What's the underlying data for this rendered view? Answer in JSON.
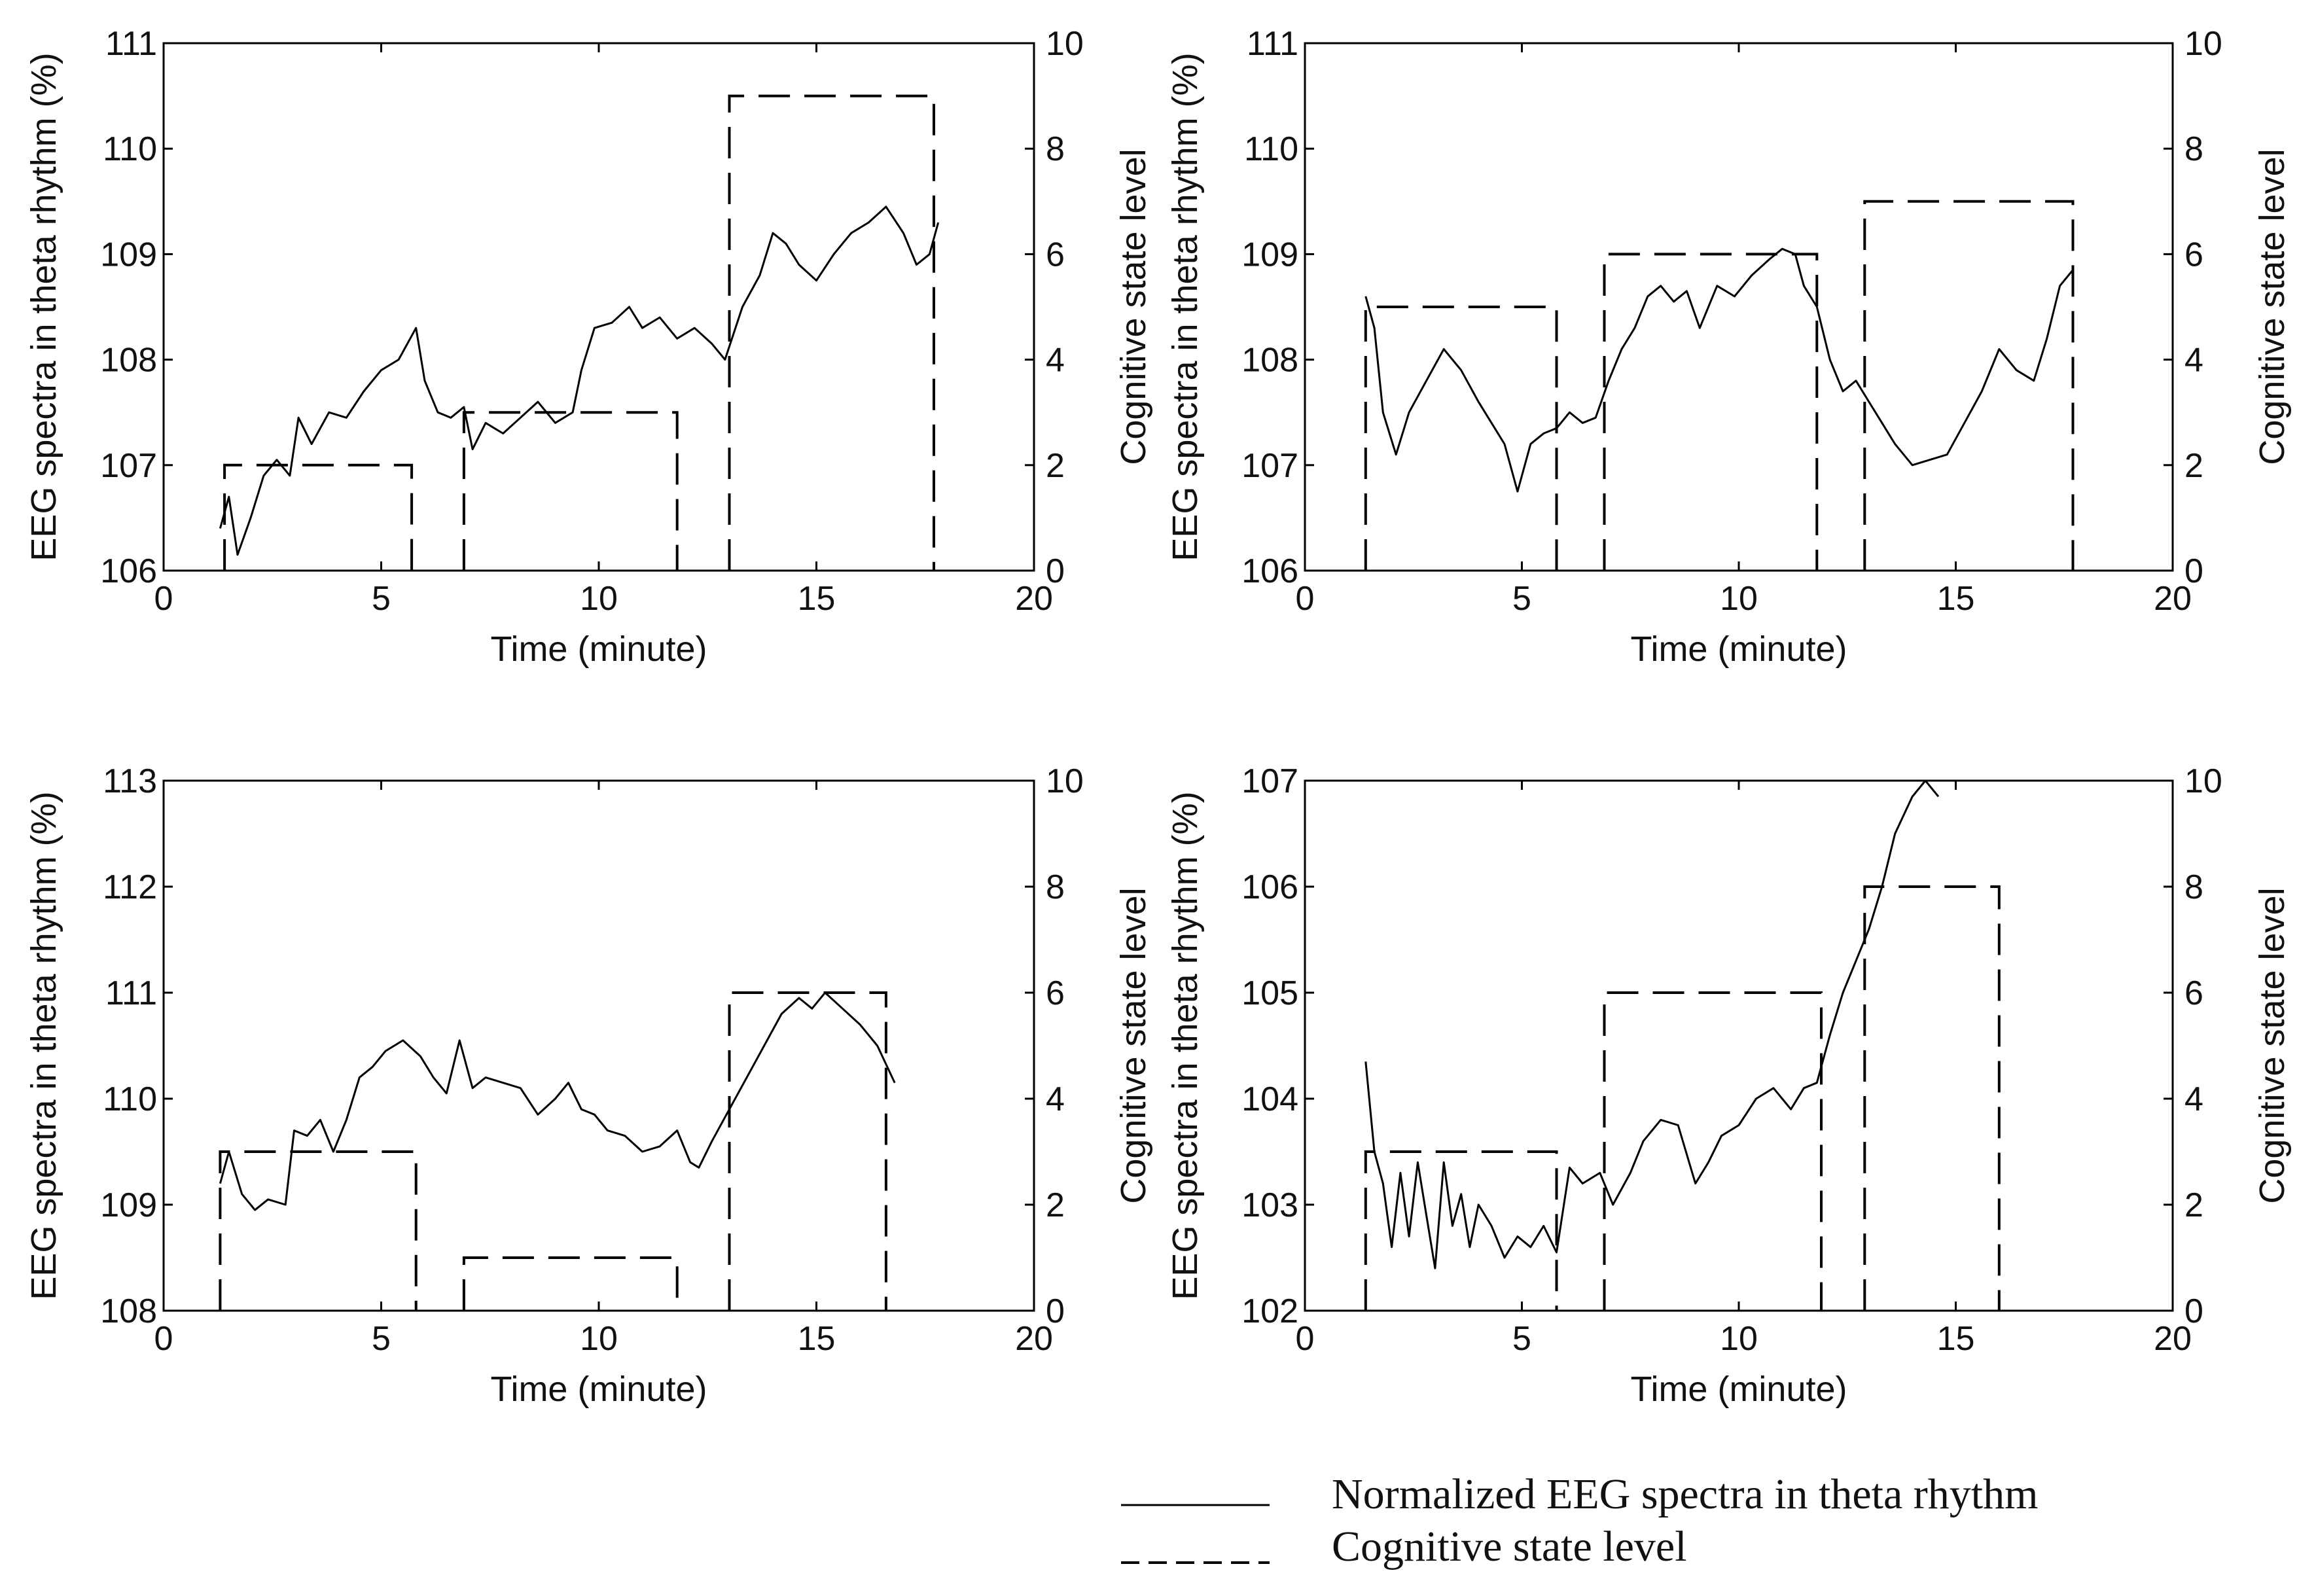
{
  "legend": {
    "solid_label": "Normalized EEG spectra in theta rhythm",
    "dashed_label": "Cognitive state level"
  },
  "chart_data": [
    {
      "type": "line",
      "panel": "top-left",
      "title": "",
      "xlabel": "Time (minute)",
      "ylabel": "EEG spectra in theta rhythm (%)",
      "y2label": "Cognitive state level",
      "xlim": [
        0,
        20
      ],
      "ylim": [
        106,
        111
      ],
      "y2lim": [
        0,
        10
      ],
      "xticks": [
        "0",
        "5",
        "10",
        "15",
        "20"
      ],
      "yticks": [
        "106",
        "107",
        "108",
        "109",
        "110",
        "111"
      ],
      "y2ticks": [
        "0",
        "2",
        "4",
        "6",
        "8",
        "10"
      ],
      "grid": false,
      "series": [
        {
          "name": "Normalized EEG spectra in theta rhythm",
          "axis": "left",
          "style": "solid",
          "x": [
            1.3,
            1.5,
            1.7,
            2.0,
            2.3,
            2.6,
            2.9,
            3.1,
            3.4,
            3.8,
            4.2,
            4.6,
            5.0,
            5.4,
            5.8,
            6.0,
            6.3,
            6.6,
            6.9,
            7.1,
            7.4,
            7.8,
            8.2,
            8.6,
            9.0,
            9.4,
            9.6,
            9.9,
            10.3,
            10.7,
            11.0,
            11.4,
            11.8,
            12.2,
            12.6,
            12.9,
            13.3,
            13.7,
            14.0,
            14.3,
            14.6,
            15.0,
            15.4,
            15.8,
            16.2,
            16.6,
            17.0,
            17.3,
            17.6,
            17.8
          ],
          "values": [
            106.4,
            106.7,
            106.15,
            106.5,
            106.9,
            107.05,
            106.9,
            107.45,
            107.2,
            107.5,
            107.45,
            107.7,
            107.9,
            108.0,
            108.3,
            107.8,
            107.5,
            107.45,
            107.55,
            107.15,
            107.4,
            107.3,
            107.45,
            107.6,
            107.4,
            107.5,
            107.9,
            108.3,
            108.35,
            108.5,
            108.3,
            108.4,
            108.2,
            108.3,
            108.15,
            108.0,
            108.5,
            108.8,
            109.2,
            109.1,
            108.9,
            108.75,
            109.0,
            109.2,
            109.3,
            109.45,
            109.2,
            108.9,
            109.0,
            109.3
          ]
        },
        {
          "name": "Cognitive state level",
          "axis": "right",
          "style": "dashed",
          "segments": [
            {
              "x0": 1.4,
              "x1": 5.7,
              "level": 2
            },
            {
              "x0": 6.9,
              "x1": 11.8,
              "level": 3
            },
            {
              "x0": 13.0,
              "x1": 17.7,
              "level": 9
            }
          ]
        }
      ]
    },
    {
      "type": "line",
      "panel": "top-right",
      "title": "",
      "xlabel": "Time (minute)",
      "ylabel": "EEG spectra in theta rhythm (%)",
      "y2label": "Cognitive state level",
      "xlim": [
        0,
        20
      ],
      "ylim": [
        106,
        111
      ],
      "y2lim": [
        0,
        10
      ],
      "xticks": [
        "0",
        "5",
        "10",
        "15",
        "20"
      ],
      "yticks": [
        "106",
        "107",
        "108",
        "109",
        "110",
        "111"
      ],
      "y2ticks": [
        "0",
        "2",
        "4",
        "6",
        "8",
        "10"
      ],
      "grid": false,
      "series": [
        {
          "name": "Normalized EEG spectra in theta rhythm",
          "axis": "left",
          "style": "solid",
          "x": [
            1.4,
            1.6,
            1.8,
            2.1,
            2.4,
            2.8,
            3.2,
            3.6,
            4.0,
            4.3,
            4.6,
            4.9,
            5.2,
            5.5,
            5.8,
            6.1,
            6.4,
            6.7,
            7.0,
            7.3,
            7.6,
            7.9,
            8.2,
            8.5,
            8.8,
            9.1,
            9.5,
            9.9,
            10.3,
            10.7,
            11.0,
            11.3,
            11.5,
            11.8,
            12.1,
            12.4,
            12.7,
            13.0,
            13.3,
            13.6,
            14.0,
            14.4,
            14.8,
            15.2,
            15.6,
            16.0,
            16.4,
            16.8,
            17.1,
            17.4,
            17.7
          ],
          "values": [
            108.6,
            108.3,
            107.5,
            107.1,
            107.5,
            107.8,
            108.1,
            107.9,
            107.6,
            107.4,
            107.2,
            106.75,
            107.2,
            107.3,
            107.35,
            107.5,
            107.4,
            107.45,
            107.8,
            108.1,
            108.3,
            108.6,
            108.7,
            108.55,
            108.65,
            108.3,
            108.7,
            108.6,
            108.8,
            108.95,
            109.05,
            109.0,
            108.7,
            108.5,
            108.0,
            107.7,
            107.8,
            107.6,
            107.4,
            107.2,
            107.0,
            107.05,
            107.1,
            107.4,
            107.7,
            108.1,
            107.9,
            107.8,
            108.2,
            108.7,
            108.85
          ]
        },
        {
          "name": "Cognitive state level",
          "axis": "right",
          "style": "dashed",
          "segments": [
            {
              "x0": 1.4,
              "x1": 5.8,
              "level": 5
            },
            {
              "x0": 6.9,
              "x1": 11.8,
              "level": 6
            },
            {
              "x0": 12.9,
              "x1": 17.7,
              "level": 7
            }
          ]
        }
      ]
    },
    {
      "type": "line",
      "panel": "bottom-left",
      "title": "",
      "xlabel": "Time (minute)",
      "ylabel": "EEG spectra in theta rhythm (%)",
      "y2label": "Cognitive state level",
      "xlim": [
        0,
        20
      ],
      "ylim": [
        108,
        113
      ],
      "y2lim": [
        0,
        10
      ],
      "xticks": [
        "0",
        "5",
        "10",
        "15",
        "20"
      ],
      "yticks": [
        "108",
        "109",
        "110",
        "111",
        "112",
        "113"
      ],
      "y2ticks": [
        "0",
        "2",
        "4",
        "6",
        "8",
        "10"
      ],
      "grid": false,
      "series": [
        {
          "name": "Normalized EEG spectra in theta rhythm",
          "axis": "left",
          "style": "solid",
          "x": [
            1.3,
            1.5,
            1.8,
            2.1,
            2.4,
            2.8,
            3.0,
            3.3,
            3.6,
            3.9,
            4.2,
            4.5,
            4.8,
            5.1,
            5.5,
            5.9,
            6.2,
            6.5,
            6.8,
            7.1,
            7.4,
            7.8,
            8.2,
            8.6,
            9.0,
            9.3,
            9.6,
            9.9,
            10.2,
            10.6,
            11.0,
            11.4,
            11.8,
            12.1,
            12.3,
            12.6,
            13.0,
            13.4,
            13.8,
            14.2,
            14.6,
            14.9,
            15.2,
            15.6,
            16.0,
            16.4,
            16.8
          ],
          "values": [
            109.2,
            109.5,
            109.1,
            108.95,
            109.05,
            109.0,
            109.7,
            109.65,
            109.8,
            109.5,
            109.8,
            110.2,
            110.3,
            110.45,
            110.55,
            110.4,
            110.2,
            110.05,
            110.55,
            110.1,
            110.2,
            110.15,
            110.1,
            109.85,
            110.0,
            110.15,
            109.9,
            109.85,
            109.7,
            109.65,
            109.5,
            109.55,
            109.7,
            109.4,
            109.35,
            109.6,
            109.9,
            110.2,
            110.5,
            110.8,
            110.95,
            110.85,
            111.0,
            110.85,
            110.7,
            110.5,
            110.15
          ]
        },
        {
          "name": "Cognitive state level",
          "axis": "right",
          "style": "dashed",
          "segments": [
            {
              "x0": 1.3,
              "x1": 5.8,
              "level": 3
            },
            {
              "x0": 6.9,
              "x1": 11.8,
              "level": 1
            },
            {
              "x0": 13.0,
              "x1": 16.6,
              "level": 6
            }
          ]
        }
      ]
    },
    {
      "type": "line",
      "panel": "bottom-right",
      "title": "",
      "xlabel": "Time (minute)",
      "ylabel": "EEG spectra in theta rhythm (%)",
      "y2label": "Cognitive state level",
      "xlim": [
        0,
        20
      ],
      "ylim": [
        102,
        107
      ],
      "y2lim": [
        0,
        10
      ],
      "xticks": [
        "0",
        "5",
        "10",
        "15",
        "20"
      ],
      "yticks": [
        "102",
        "103",
        "104",
        "105",
        "106",
        "107"
      ],
      "y2ticks": [
        "0",
        "2",
        "4",
        "6",
        "8",
        "10"
      ],
      "grid": false,
      "series": [
        {
          "name": "Normalized EEG spectra in theta rhythm",
          "axis": "left",
          "style": "solid",
          "x": [
            1.4,
            1.6,
            1.8,
            2.0,
            2.2,
            2.4,
            2.6,
            2.8,
            3.0,
            3.2,
            3.4,
            3.6,
            3.8,
            4.0,
            4.3,
            4.6,
            4.9,
            5.2,
            5.5,
            5.8,
            6.1,
            6.4,
            6.8,
            7.1,
            7.5,
            7.8,
            8.2,
            8.6,
            9.0,
            9.3,
            9.6,
            10.0,
            10.4,
            10.8,
            11.2,
            11.5,
            11.8,
            12.1,
            12.4,
            12.7,
            13.0,
            13.3,
            13.6,
            14.0,
            14.3,
            14.6
          ],
          "values": [
            104.35,
            103.5,
            103.2,
            102.6,
            103.3,
            102.7,
            103.4,
            102.9,
            102.4,
            103.4,
            102.8,
            103.1,
            102.6,
            103.0,
            102.8,
            102.5,
            102.7,
            102.6,
            102.8,
            102.55,
            103.35,
            103.2,
            103.3,
            103.0,
            103.3,
            103.6,
            103.8,
            103.75,
            103.2,
            103.4,
            103.65,
            103.75,
            104.0,
            104.1,
            103.9,
            104.1,
            104.15,
            104.6,
            105.0,
            105.3,
            105.6,
            106.0,
            106.5,
            106.85,
            107.0,
            106.85
          ]
        },
        {
          "name": "Cognitive state level",
          "axis": "right",
          "style": "dashed",
          "segments": [
            {
              "x0": 1.4,
              "x1": 5.8,
              "level": 3
            },
            {
              "x0": 6.9,
              "x1": 11.9,
              "level": 6
            },
            {
              "x0": 12.9,
              "x1": 16.0,
              "level": 8
            }
          ]
        }
      ]
    }
  ]
}
